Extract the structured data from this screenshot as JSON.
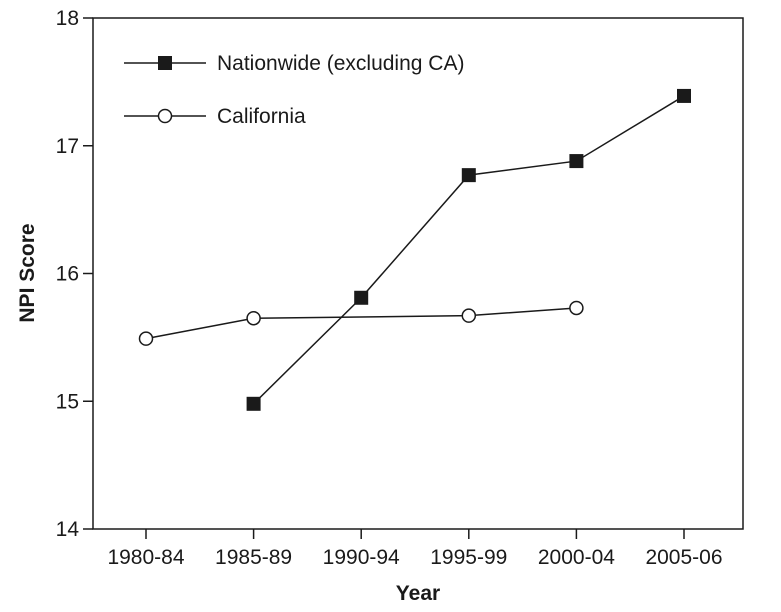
{
  "chart_data": {
    "type": "line",
    "title": "",
    "xlabel": "Year",
    "ylabel": "NPI Score",
    "categories": [
      "1980-84",
      "1985-89",
      "1990-94",
      "1995-99",
      "2000-04",
      "2005-06"
    ],
    "yticks": [
      "14",
      "15",
      "16",
      "17",
      "18"
    ],
    "ylim": [
      14,
      18
    ],
    "grid": false,
    "legend_position": "top-left",
    "series": [
      {
        "name": "Nationwide (excluding CA)",
        "marker": "filled-square",
        "color": "#1a1a1a",
        "values": [
          null,
          14.98,
          15.81,
          16.77,
          16.88,
          17.39
        ]
      },
      {
        "name": "California",
        "marker": "open-circle",
        "color": "#1a1a1a",
        "values": [
          15.49,
          15.65,
          null,
          15.67,
          15.73,
          null
        ]
      }
    ]
  }
}
